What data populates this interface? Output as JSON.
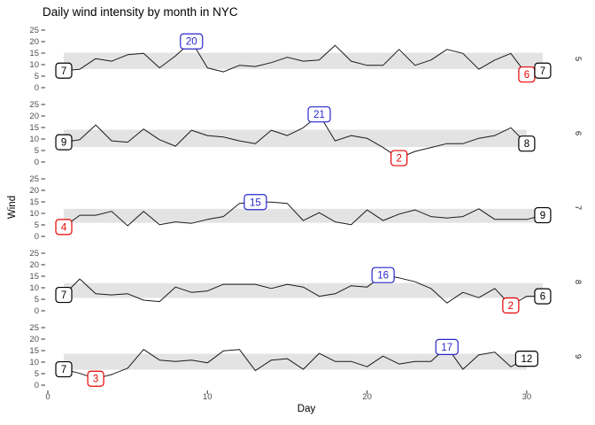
{
  "colors": {
    "line": "#1a1a1a",
    "band": "#e3e3e3",
    "tick_text": "#4d4d4d",
    "tick_mark": "#333333",
    "label_black": "#000000",
    "label_blue": "#2727cc",
    "label_red": "#e60000",
    "facet_text": "#1a1a1a"
  },
  "chart_data": {
    "type": "line",
    "title": "Daily wind intensity by month in NYC",
    "xlabel": "Day",
    "ylabel": "Wind",
    "x_ticks": [
      0,
      10,
      20,
      30
    ],
    "y_ticks": [
      0,
      5,
      10,
      15,
      20,
      25
    ],
    "xlim": [
      0,
      31.8
    ],
    "ylim": [
      0,
      25
    ],
    "grid": false,
    "band_rule": "mean plus-minus one standard deviation per facet",
    "facets": [
      {
        "month": "5",
        "values": [
          7.4,
          8.0,
          12.6,
          11.5,
          14.3,
          14.9,
          8.6,
          13.8,
          20.1,
          8.6,
          6.9,
          9.7,
          9.2,
          10.9,
          13.2,
          11.5,
          12.0,
          18.4,
          11.5,
          9.7,
          9.7,
          16.6,
          9.7,
          12.0,
          16.6,
          14.9,
          8.0,
          12.0,
          14.9,
          5.7,
          7.4
        ],
        "annotations": [
          {
            "role": "first",
            "day": 1,
            "label": "7",
            "color": "black"
          },
          {
            "role": "max",
            "day": 9,
            "label": "20",
            "color": "blue"
          },
          {
            "role": "min",
            "day": 30,
            "label": "6",
            "color": "red"
          },
          {
            "role": "last",
            "day": 31,
            "label": "7",
            "color": "black"
          }
        ]
      },
      {
        "month": "6",
        "values": [
          8.6,
          9.7,
          16.1,
          9.2,
          8.6,
          14.3,
          9.7,
          6.9,
          13.8,
          11.5,
          10.9,
          9.2,
          8.0,
          13.8,
          11.5,
          14.9,
          20.7,
          9.2,
          11.5,
          10.3,
          6.3,
          1.7,
          4.6,
          6.3,
          8.0,
          8.0,
          10.3,
          11.5,
          14.9,
          8.0
        ],
        "annotations": [
          {
            "role": "first",
            "day": 1,
            "label": "9",
            "color": "black"
          },
          {
            "role": "max",
            "day": 17,
            "label": "21",
            "color": "blue"
          },
          {
            "role": "min",
            "day": 22,
            "label": "2",
            "color": "red"
          },
          {
            "role": "last",
            "day": 30,
            "label": "8",
            "color": "black"
          }
        ]
      },
      {
        "month": "7",
        "values": [
          4.1,
          9.2,
          9.2,
          10.9,
          4.6,
          10.9,
          5.1,
          6.3,
          5.7,
          7.4,
          8.6,
          14.3,
          14.9,
          14.9,
          14.3,
          6.9,
          10.3,
          6.3,
          5.1,
          11.5,
          6.9,
          9.7,
          11.5,
          8.6,
          8.0,
          8.6,
          12.0,
          7.4,
          7.4,
          7.4,
          9.2
        ],
        "annotations": [
          {
            "role": "min",
            "day": 1,
            "label": "4",
            "color": "red"
          },
          {
            "role": "max",
            "day": 13,
            "label": "15",
            "color": "blue"
          },
          {
            "role": "last",
            "day": 31,
            "label": "9",
            "color": "black"
          }
        ]
      },
      {
        "month": "8",
        "values": [
          6.9,
          13.8,
          7.4,
          6.9,
          7.4,
          4.6,
          4.0,
          10.3,
          8.0,
          8.6,
          11.5,
          11.5,
          11.5,
          9.7,
          11.5,
          10.3,
          6.3,
          7.4,
          10.9,
          10.3,
          15.5,
          14.3,
          12.6,
          9.7,
          3.4,
          8.0,
          5.7,
          9.7,
          2.3,
          6.3,
          6.3
        ],
        "annotations": [
          {
            "role": "first",
            "day": 1,
            "label": "7",
            "color": "black"
          },
          {
            "role": "max",
            "day": 21,
            "label": "16",
            "color": "blue"
          },
          {
            "role": "min",
            "day": 29,
            "label": "2",
            "color": "red"
          },
          {
            "role": "last",
            "day": 31,
            "label": "6",
            "color": "black"
          }
        ]
      },
      {
        "month": "9",
        "values": [
          6.9,
          5.1,
          2.8,
          4.6,
          7.4,
          15.5,
          10.9,
          10.3,
          10.9,
          9.7,
          14.9,
          15.5,
          6.3,
          10.9,
          11.5,
          6.9,
          13.8,
          10.3,
          10.3,
          8.0,
          12.6,
          9.2,
          10.3,
          10.3,
          16.6,
          6.9,
          13.2,
          14.3,
          8.0,
          11.5
        ],
        "annotations": [
          {
            "role": "first",
            "day": 1,
            "label": "7",
            "color": "black"
          },
          {
            "role": "min",
            "day": 3,
            "label": "3",
            "color": "red"
          },
          {
            "role": "max",
            "day": 25,
            "label": "17",
            "color": "blue"
          },
          {
            "role": "last",
            "day": 30,
            "label": "12",
            "color": "black"
          }
        ]
      }
    ]
  }
}
